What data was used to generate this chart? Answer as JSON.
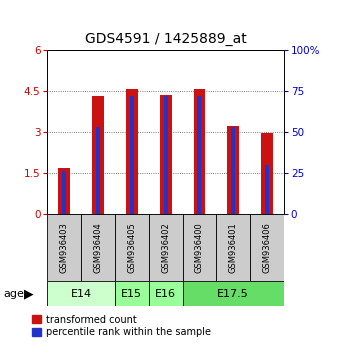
{
  "title": "GDS4591 / 1425889_at",
  "samples": [
    "GSM936403",
    "GSM936404",
    "GSM936405",
    "GSM936402",
    "GSM936400",
    "GSM936401",
    "GSM936406"
  ],
  "red_values": [
    1.7,
    4.3,
    4.55,
    4.35,
    4.55,
    3.2,
    2.95
  ],
  "blue_pct_values": [
    26,
    53,
    72,
    72,
    72,
    53,
    30
  ],
  "ylim_left": [
    0,
    6
  ],
  "ylim_right": [
    0,
    100
  ],
  "yticks_left": [
    0,
    1.5,
    3,
    4.5,
    6
  ],
  "yticks_right": [
    0,
    25,
    50,
    75,
    100
  ],
  "age_groups": [
    {
      "label": "E14",
      "start": 0,
      "end": 2,
      "color": "#ccffcc"
    },
    {
      "label": "E15",
      "start": 2,
      "end": 3,
      "color": "#99ff99"
    },
    {
      "label": "E16",
      "start": 3,
      "end": 4,
      "color": "#99ff99"
    },
    {
      "label": "E17.5",
      "start": 4,
      "end": 7,
      "color": "#66dd66"
    }
  ],
  "red_bar_width": 0.35,
  "blue_bar_width": 0.12,
  "bar_color_red": "#cc1111",
  "bar_color_blue": "#2233cc",
  "title_fontsize": 10,
  "tick_fontsize": 7.5,
  "background_color": "#ffffff",
  "sample_box_color": "#cccccc",
  "grid_color": "#555555",
  "left_axis_color": "#cc0000",
  "right_axis_color": "#0000cc"
}
